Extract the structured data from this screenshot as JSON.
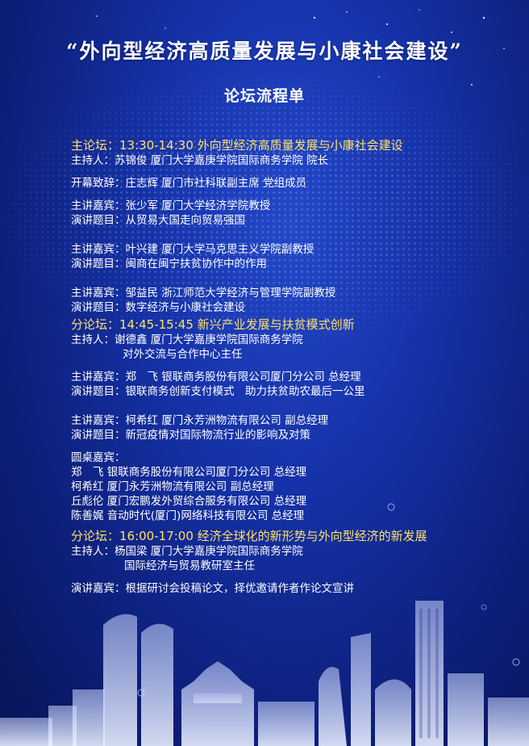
{
  "title": "“外向型经济高质量发展与小康社会建设”",
  "subtitle": "论坛流程单",
  "sections": {
    "main": {
      "heading": "主论坛：13:30-14:30 外向型经济高质量发展与小康社会建设",
      "lines": [
        "主持人：苏锦俊 厦门大学嘉庚学院国际商务学院 院长",
        "开幕致辞：庄志辉 厦门市社科联副主席 党组成员",
        "主讲嘉宾：张少军 厦门大学经济学院教授",
        "演讲题目：从贸易大国走向贸易强国",
        "主讲嘉宾：叶兴建 厦门大学马克思主义学院副教授",
        "演讲题目：闽商在闽宁扶贫协作中的作用",
        "主讲嘉宾：邹益民 浙江师范大学经济与管理学院副教授",
        "演讲题目：数字经济与小康社会建设"
      ]
    },
    "sub1": {
      "heading": "分论坛：14:45-15:45 新兴产业发展与扶贫模式创新",
      "lines": [
        "主持人：谢德鑫 厦门大学嘉庚学院国际商务学院",
        "对外交流与合作中心主任",
        "主讲嘉宾：郑　飞 银联商务股份有限公司厦门分公司 总经理",
        "演讲题目：银联商务创新支付模式　助力扶贫助农最后一公里",
        "主讲嘉宾：柯希红 厦门永芳洲物流有限公司 副总经理",
        "演讲题目：新冠疫情对国际物流行业的影响及对策",
        "圆桌嘉宾：",
        "郑　飞 银联商务股份有限公司厦门分公司 总经理",
        "柯希红 厦门永芳洲物流有限公司 副总经理",
        "丘彪伦 厦门宏鹏发外贸综合服务有限公司 总经理",
        "陈善娓 音动时代(厦门)网络科技有限公司 总经理"
      ]
    },
    "sub2": {
      "heading": "分论坛：16:00-17:00 经济全球化的新形势与外向型经济的新发展",
      "lines": [
        "主持人：杨国梁 厦门大学嘉庚学院国际商务学院",
        "国际经济与贸易教研室主任",
        "演讲嘉宾：根据研讨会投稿论文，择优邀请作者作论文宣讲"
      ]
    }
  },
  "colors": {
    "heading": "#ffe066",
    "text": "#ffffff",
    "bg_center": "#2348c9",
    "bg_edge": "#081456"
  }
}
